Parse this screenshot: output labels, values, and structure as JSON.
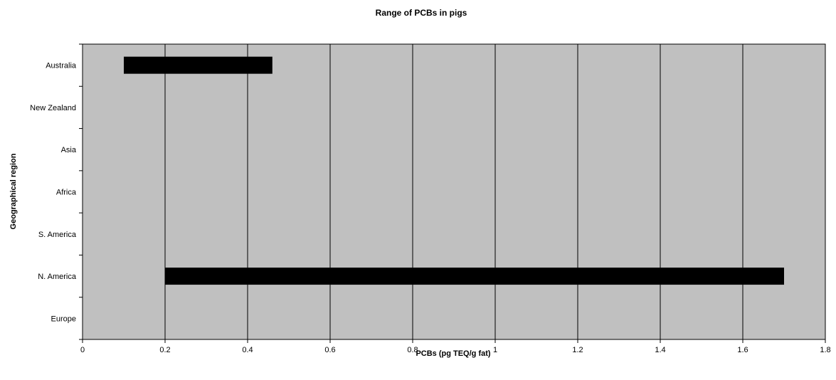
{
  "chart_data": {
    "type": "bar",
    "orientation": "horizontal-range",
    "title": "Range of PCBs in pigs",
    "xlabel": "PCBs (pg TEQ/g fat)",
    "ylabel": "Geographical region",
    "xlim": [
      0,
      1.8
    ],
    "xticks": [
      0,
      0.2,
      0.4,
      0.6,
      0.8,
      1,
      1.2,
      1.4,
      1.6,
      1.8
    ],
    "xtick_labels": [
      "0",
      "0.2",
      "0.4",
      "0.6",
      "0.8",
      "1",
      "1.2",
      "1.4",
      "1.6",
      "1.8"
    ],
    "categories": [
      "Australia",
      "New Zealand",
      "Asia",
      "Africa",
      "S. America",
      "N. America",
      "Europe"
    ],
    "ranges": [
      {
        "category": "Australia",
        "min": 0.1,
        "max": 0.46
      },
      {
        "category": "N. America",
        "min": 0.2,
        "max": 1.7
      }
    ],
    "grid": "vertical",
    "legend": "none",
    "colors": {
      "plot_background": "#c0c0c0",
      "bar": "#000000",
      "grid": "#000000"
    }
  }
}
